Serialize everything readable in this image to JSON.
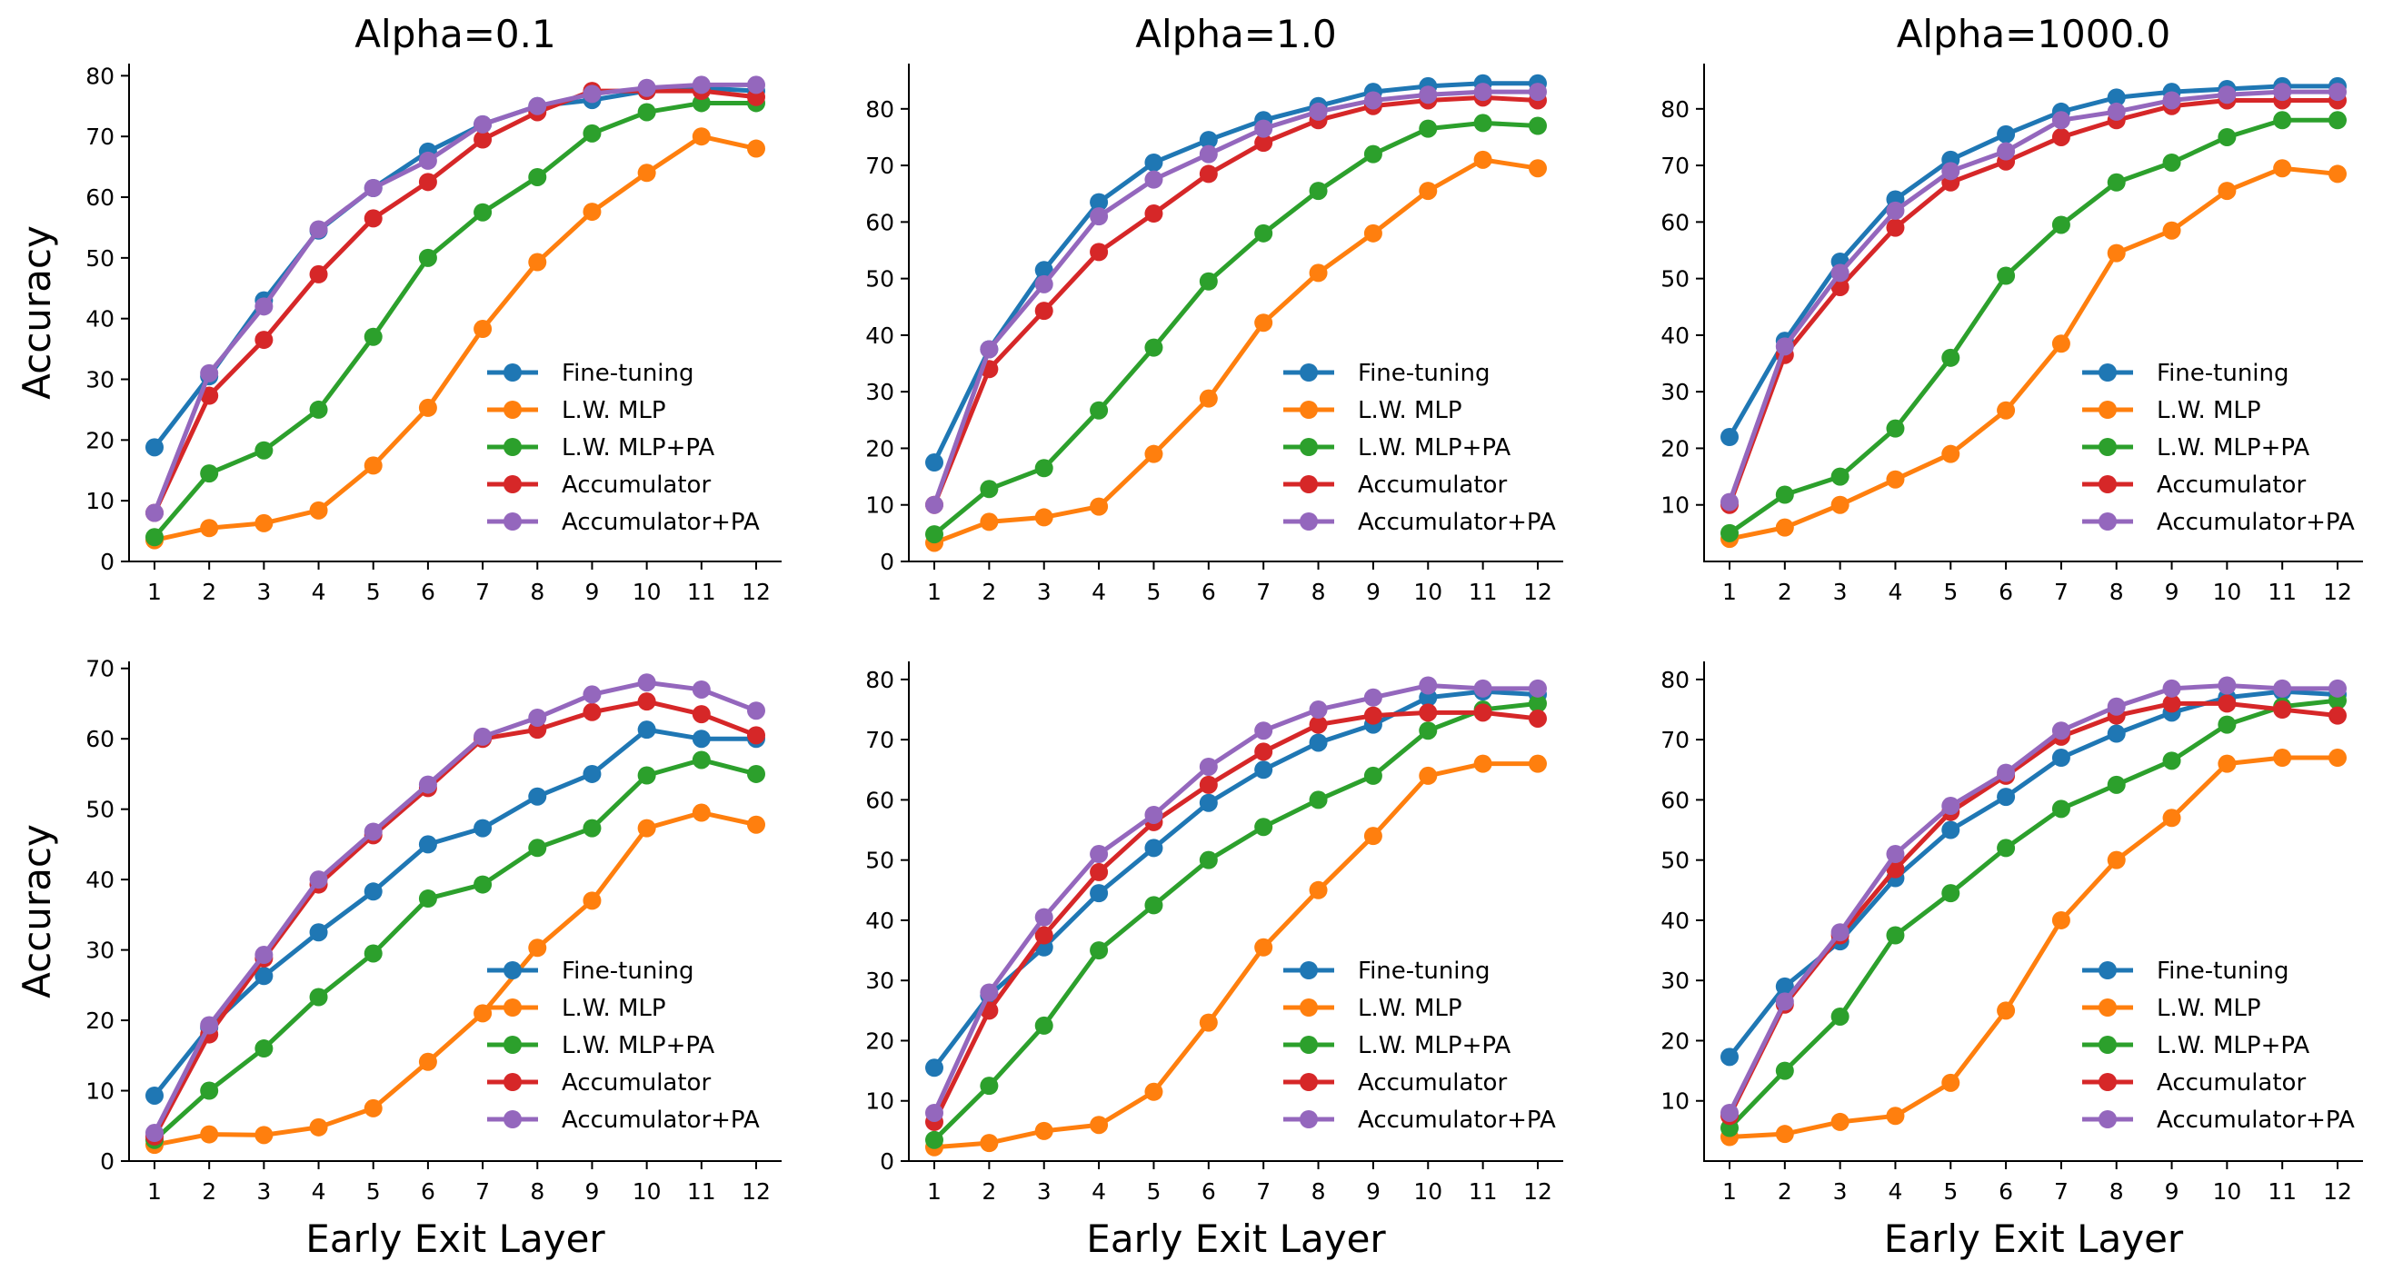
{
  "figure": {
    "series_names": [
      "Fine-tuning",
      "L.W. MLP",
      "L.W. MLP+PA",
      "Accumulator",
      "Accumulator+PA"
    ],
    "colors": {
      "Fine-tuning": "#1f77b4",
      "L.W. MLP": "#ff7f0e",
      "L.W. MLP+PA": "#2ca02c",
      "Accumulator": "#d62728",
      "Accumulator+PA": "#9467bd"
    }
  },
  "chart_data": [
    {
      "type": "line",
      "title": "Alpha=0.1",
      "xlabel": "",
      "ylabel": "Accuracy",
      "x": [
        1,
        2,
        3,
        4,
        5,
        6,
        7,
        8,
        9,
        10,
        11,
        12
      ],
      "ylim": [
        0,
        82
      ],
      "yticks": [
        0,
        10,
        20,
        30,
        40,
        50,
        60,
        70,
        80
      ],
      "legend": "lower-right",
      "series": [
        {
          "name": "Fine-tuning",
          "values": [
            18.8,
            30.5,
            43,
            54.5,
            61.5,
            67.5,
            72,
            75,
            76,
            77.5,
            78,
            77.5
          ]
        },
        {
          "name": "L.W. MLP",
          "values": [
            3.5,
            5.5,
            6.3,
            8.4,
            15.8,
            25.3,
            38.3,
            49.3,
            57.6,
            64,
            70,
            68
          ]
        },
        {
          "name": "L.W. MLP+PA",
          "values": [
            4,
            14.5,
            18.3,
            25,
            37,
            50,
            57.5,
            63.3,
            70.5,
            74,
            75.5,
            75.5
          ]
        },
        {
          "name": "Accumulator",
          "values": [
            8,
            27.3,
            36.5,
            47.3,
            56.5,
            62.5,
            69.5,
            74,
            77.5,
            77.5,
            77.5,
            76.5
          ]
        },
        {
          "name": "Accumulator+PA",
          "values": [
            8,
            31,
            42,
            54.7,
            61.5,
            66,
            72,
            75,
            77,
            78,
            78.5,
            78.5
          ]
        }
      ]
    },
    {
      "type": "line",
      "title": "Alpha=1.0",
      "xlabel": "",
      "ylabel": "",
      "x": [
        1,
        2,
        3,
        4,
        5,
        6,
        7,
        8,
        9,
        10,
        11,
        12
      ],
      "ylim": [
        0,
        88
      ],
      "yticks": [
        0,
        10,
        20,
        30,
        40,
        50,
        60,
        70,
        80
      ],
      "legend": "lower-right",
      "series": [
        {
          "name": "Fine-tuning",
          "values": [
            17.5,
            37.5,
            51.5,
            63.5,
            70.5,
            74.5,
            78,
            80.5,
            83,
            84,
            84.5,
            84.5
          ]
        },
        {
          "name": "L.W. MLP",
          "values": [
            3.3,
            7,
            7.8,
            9.7,
            19,
            28.8,
            42.2,
            51,
            58,
            65.5,
            71,
            69.5
          ]
        },
        {
          "name": "L.W. MLP+PA",
          "values": [
            4.8,
            12.8,
            16.5,
            26.7,
            37.8,
            49.5,
            58,
            65.5,
            72,
            76.5,
            77.5,
            77
          ]
        },
        {
          "name": "Accumulator",
          "values": [
            10,
            34,
            44.3,
            54.7,
            61.5,
            68.5,
            74,
            78,
            80.5,
            81.5,
            82,
            81.5
          ]
        },
        {
          "name": "Accumulator+PA",
          "values": [
            10,
            37.5,
            49,
            61,
            67.5,
            72,
            76.5,
            79.5,
            81.5,
            82.5,
            83,
            83
          ]
        }
      ]
    },
    {
      "type": "line",
      "title": "Alpha=1000.0",
      "xlabel": "",
      "ylabel": "",
      "x": [
        1,
        2,
        3,
        4,
        5,
        6,
        7,
        8,
        9,
        10,
        11,
        12
      ],
      "ylim": [
        0,
        88
      ],
      "yticks": [
        10,
        20,
        30,
        40,
        50,
        60,
        70,
        80
      ],
      "legend": "lower-right",
      "series": [
        {
          "name": "Fine-tuning",
          "values": [
            22,
            39,
            53,
            64,
            71,
            75.5,
            79.5,
            82,
            83,
            83.5,
            84,
            84
          ]
        },
        {
          "name": "L.W. MLP",
          "values": [
            4,
            6,
            10,
            14.5,
            19,
            26.7,
            38.5,
            54.5,
            58.5,
            65.5,
            69.5,
            68.5
          ]
        },
        {
          "name": "L.W. MLP+PA",
          "values": [
            5,
            11.8,
            15,
            23.5,
            36,
            50.5,
            59.5,
            67,
            70.5,
            75,
            78,
            78
          ]
        },
        {
          "name": "Accumulator",
          "values": [
            10,
            36.5,
            48.5,
            59,
            67,
            70.7,
            75,
            78,
            80.5,
            81.5,
            81.5,
            81.5
          ]
        },
        {
          "name": "Accumulator+PA",
          "values": [
            10.5,
            38,
            51,
            62,
            69,
            72.5,
            78,
            79.5,
            81.5,
            82.5,
            83,
            83
          ]
        }
      ]
    },
    {
      "type": "line",
      "title": "",
      "xlabel": "Early Exit Layer",
      "ylabel": "Accuracy",
      "x": [
        1,
        2,
        3,
        4,
        5,
        6,
        7,
        8,
        9,
        10,
        11,
        12
      ],
      "ylim": [
        0,
        71
      ],
      "yticks": [
        0,
        10,
        20,
        30,
        40,
        50,
        60,
        70
      ],
      "legend": "lower-right",
      "series": [
        {
          "name": "Fine-tuning",
          "values": [
            9.3,
            19,
            26.3,
            32.5,
            38.3,
            45,
            47.3,
            51.8,
            55,
            61.3,
            60,
            60
          ]
        },
        {
          "name": "L.W. MLP",
          "values": [
            2.3,
            3.8,
            3.7,
            4.8,
            7.5,
            14.1,
            21,
            30.3,
            37,
            47.3,
            49.5,
            47.8
          ]
        },
        {
          "name": "L.W. MLP+PA",
          "values": [
            3,
            10,
            16,
            23.3,
            29.5,
            37.3,
            39.3,
            44.5,
            47.3,
            54.8,
            57,
            55
          ]
        },
        {
          "name": "Accumulator",
          "values": [
            3.5,
            18,
            28.8,
            39.3,
            46.3,
            53,
            60,
            61.3,
            63.8,
            65.3,
            63.5,
            60.5
          ]
        },
        {
          "name": "Accumulator+PA",
          "values": [
            4,
            19.3,
            29.3,
            40,
            46.8,
            53.5,
            60.3,
            63,
            66.3,
            68,
            67,
            64
          ]
        }
      ]
    },
    {
      "type": "line",
      "title": "",
      "xlabel": "Early Exit Layer",
      "ylabel": "",
      "x": [
        1,
        2,
        3,
        4,
        5,
        6,
        7,
        8,
        9,
        10,
        11,
        12
      ],
      "ylim": [
        0,
        83
      ],
      "yticks": [
        0,
        10,
        20,
        30,
        40,
        50,
        60,
        70,
        80
      ],
      "legend": "lower-right",
      "series": [
        {
          "name": "Fine-tuning",
          "values": [
            15.5,
            27.5,
            35.5,
            44.5,
            52,
            59.5,
            65,
            69.5,
            72.5,
            77,
            78,
            77.5
          ]
        },
        {
          "name": "L.W. MLP",
          "values": [
            2.3,
            3,
            5,
            6,
            11.5,
            23,
            35.5,
            45,
            54,
            64,
            66,
            66
          ]
        },
        {
          "name": "L.W. MLP+PA",
          "values": [
            3.5,
            12.5,
            22.5,
            35,
            42.5,
            50,
            55.5,
            60,
            64,
            71.5,
            75,
            76
          ]
        },
        {
          "name": "Accumulator",
          "values": [
            6.5,
            25,
            37.5,
            48,
            56.3,
            62.5,
            68,
            72.5,
            74,
            74.5,
            74.5,
            73.5
          ]
        },
        {
          "name": "Accumulator+PA",
          "values": [
            8,
            28,
            40.5,
            51,
            57.5,
            65.5,
            71.5,
            75,
            77,
            79,
            78.5,
            78.5
          ]
        }
      ]
    },
    {
      "type": "line",
      "title": "",
      "xlabel": "Early Exit Layer",
      "ylabel": "",
      "x": [
        1,
        2,
        3,
        4,
        5,
        6,
        7,
        8,
        9,
        10,
        11,
        12
      ],
      "ylim": [
        0,
        83
      ],
      "yticks": [
        10,
        20,
        30,
        40,
        50,
        60,
        70,
        80
      ],
      "legend": "lower-right",
      "series": [
        {
          "name": "Fine-tuning",
          "values": [
            17.3,
            29,
            36.5,
            47,
            55,
            60.5,
            67,
            71,
            74.5,
            77,
            78,
            77.5
          ]
        },
        {
          "name": "L.W. MLP",
          "values": [
            4,
            4.5,
            6.5,
            7.5,
            13,
            25,
            40,
            50,
            57,
            66,
            67,
            67
          ]
        },
        {
          "name": "L.W. MLP+PA",
          "values": [
            5.5,
            15,
            24,
            37.5,
            44.5,
            52,
            58.5,
            62.5,
            66.5,
            72.5,
            75.5,
            76.5
          ]
        },
        {
          "name": "Accumulator",
          "values": [
            7.5,
            26,
            37.5,
            48.5,
            58,
            64,
            70.5,
            74,
            76,
            76,
            75,
            74
          ]
        },
        {
          "name": "Accumulator+PA",
          "values": [
            8,
            26.5,
            38,
            51,
            59,
            64.5,
            71.5,
            75.5,
            78.5,
            79,
            78.5,
            78.5
          ]
        }
      ]
    }
  ]
}
